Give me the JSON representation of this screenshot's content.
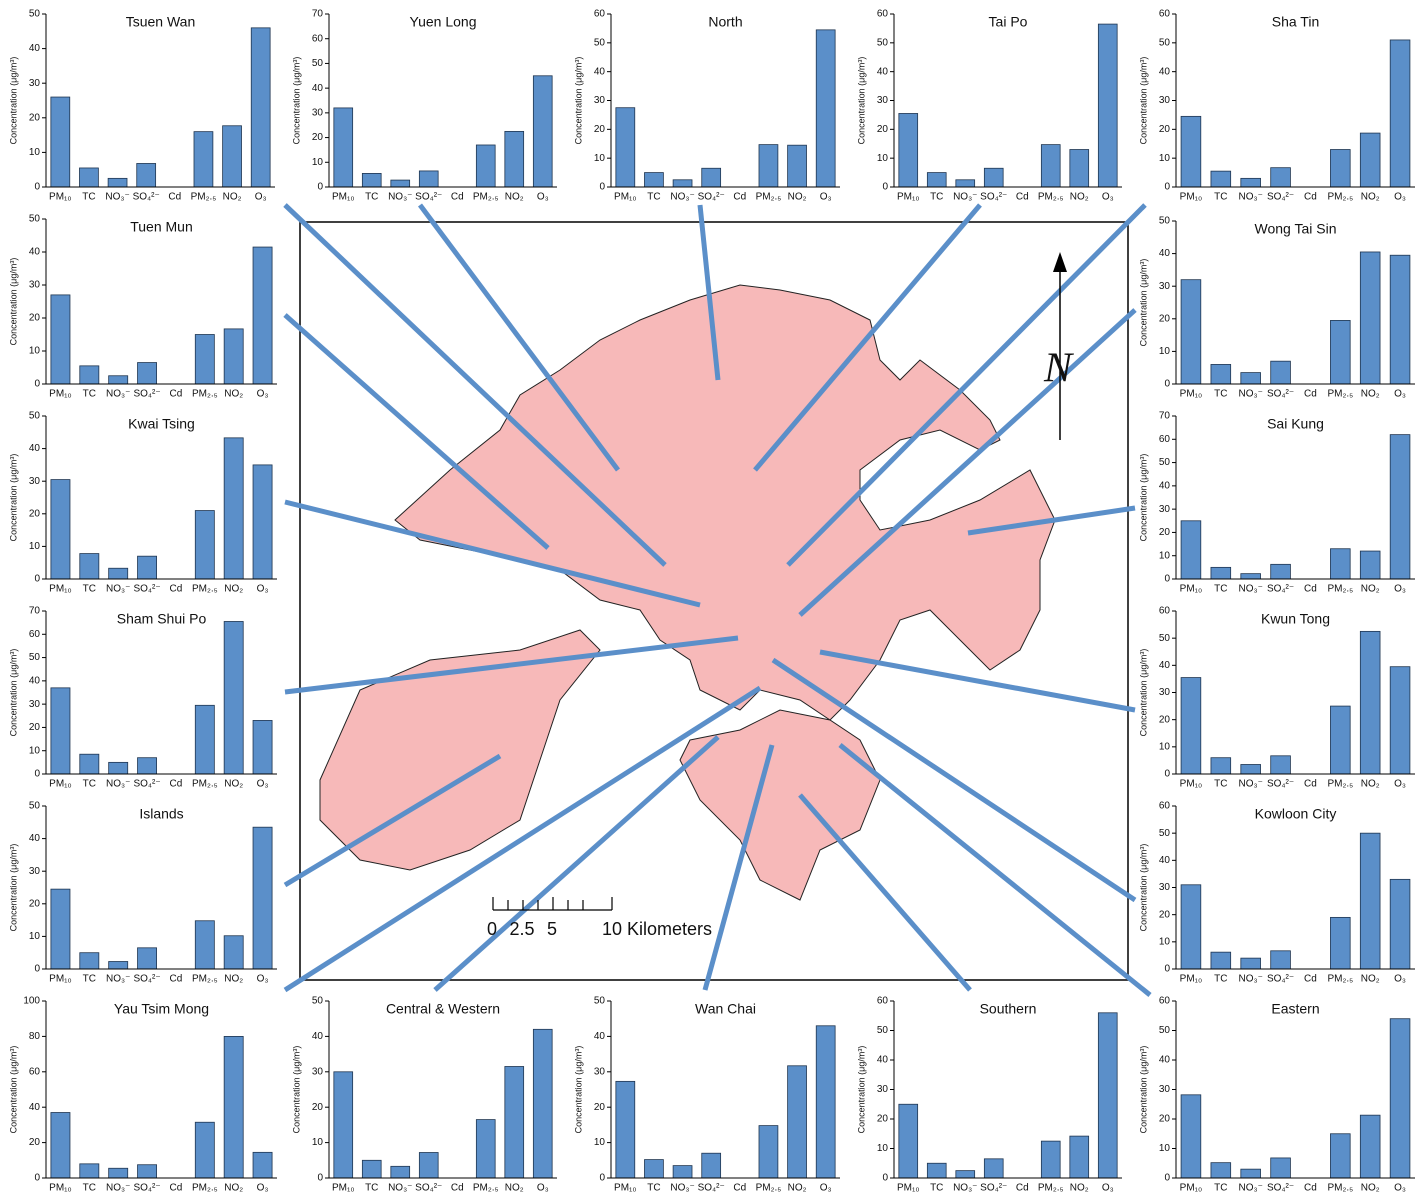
{
  "chart_data": [
    {
      "type": "bar",
      "title": "Tsuen Wan",
      "ylabel": "Concentration (μg/m³)",
      "categories": [
        "PM₁₀",
        "TC",
        "NO₃⁻",
        "SO₄²⁻",
        "Cd",
        "PM₂.₅",
        "NO₂",
        "O₃"
      ],
      "values": [
        26,
        5.5,
        2.5,
        6.8,
        0,
        16,
        17.7,
        46
      ],
      "color": "#5b8fc9",
      "ylim": [
        0,
        50
      ],
      "yticks": [
        0,
        10,
        20,
        30,
        40,
        50
      ]
    },
    {
      "type": "bar",
      "title": "Yuen Long",
      "ylabel": "Concentration (μg/m³)",
      "categories": [
        "PM₁₀",
        "TC",
        "NO₃⁻",
        "SO₄²⁻",
        "Cd",
        "PM₂.₅",
        "NO₂",
        "O₃"
      ],
      "values": [
        32,
        5.5,
        2.8,
        6.5,
        0,
        17,
        22.5,
        45
      ],
      "color": "#5b8fc9",
      "ylim": [
        0,
        70
      ],
      "yticks": [
        0,
        10,
        20,
        30,
        40,
        50,
        60,
        70
      ]
    },
    {
      "type": "bar",
      "title": "North",
      "ylabel": "Concentration (μg/m³)",
      "categories": [
        "PM₁₀",
        "TC",
        "NO₃⁻",
        "SO₄²⁻",
        "Cd",
        "PM₂.₅",
        "NO₂",
        "O₃"
      ],
      "values": [
        27.5,
        5,
        2.5,
        6.5,
        0,
        14.7,
        14.5,
        54.5
      ],
      "color": "#5b8fc9",
      "ylim": [
        0,
        60
      ],
      "yticks": [
        0,
        10,
        20,
        30,
        40,
        50,
        60
      ]
    },
    {
      "type": "bar",
      "title": "Tai Po",
      "ylabel": "Concentration (μg/m³)",
      "categories": [
        "PM₁₀",
        "TC",
        "NO₃⁻",
        "SO₄²⁻",
        "Cd",
        "PM₂.₅",
        "NO₂",
        "O₃"
      ],
      "values": [
        25.5,
        5,
        2.5,
        6.5,
        0,
        14.7,
        13,
        56.5
      ],
      "color": "#5b8fc9",
      "ylim": [
        0,
        60
      ],
      "yticks": [
        0,
        10,
        20,
        30,
        40,
        50,
        60
      ]
    },
    {
      "type": "bar",
      "title": "Sha Tin",
      "ylabel": "Concentration (μg/m³)",
      "categories": [
        "PM₁₀",
        "TC",
        "NO₃⁻",
        "SO₄²⁻",
        "Cd",
        "PM₂.₅",
        "NO₂",
        "O₃"
      ],
      "values": [
        24.5,
        5.5,
        3,
        6.7,
        0,
        13,
        18.7,
        51
      ],
      "color": "#5b8fc9",
      "ylim": [
        0,
        60
      ],
      "yticks": [
        0,
        10,
        20,
        30,
        40,
        50,
        60
      ]
    },
    {
      "type": "bar",
      "title": "Tuen Mun",
      "ylabel": "Concentration (μg/m³)",
      "categories": [
        "PM₁₀",
        "TC",
        "NO₃⁻",
        "SO₄²⁻",
        "Cd",
        "PM₂.₅",
        "NO₂",
        "O₃"
      ],
      "values": [
        27,
        5.5,
        2.5,
        6.5,
        0,
        15,
        16.7,
        41.5
      ],
      "color": "#5b8fc9",
      "ylim": [
        0,
        50
      ],
      "yticks": [
        0,
        10,
        20,
        30,
        40,
        50
      ]
    },
    {
      "type": "bar",
      "title": "Wong Tai Sin",
      "ylabel": "Concentration (μg/m³)",
      "categories": [
        "PM₁₀",
        "TC",
        "NO₃⁻",
        "SO₄²⁻",
        "Cd",
        "PM₂.₅",
        "NO₂",
        "O₃"
      ],
      "values": [
        32,
        6,
        3.5,
        7,
        0,
        19.5,
        40.5,
        39.5
      ],
      "color": "#5b8fc9",
      "ylim": [
        0,
        50
      ],
      "yticks": [
        0,
        10,
        20,
        30,
        40,
        50
      ]
    },
    {
      "type": "bar",
      "title": "Kwai Tsing",
      "ylabel": "Concentration (μg/m³)",
      "categories": [
        "PM₁₀",
        "TC",
        "NO₃⁻",
        "SO₄²⁻",
        "Cd",
        "PM₂.₅",
        "NO₂",
        "O₃"
      ],
      "values": [
        30.5,
        7.8,
        3.3,
        7,
        0,
        21,
        43.3,
        35
      ],
      "color": "#5b8fc9",
      "ylim": [
        0,
        50
      ],
      "yticks": [
        0,
        10,
        20,
        30,
        40,
        50
      ]
    },
    {
      "type": "bar",
      "title": "Sai Kung",
      "ylabel": "Concentration (μg/m³)",
      "categories": [
        "PM₁₀",
        "TC",
        "NO₃⁻",
        "SO₄²⁻",
        "Cd",
        "PM₂.₅",
        "NO₂",
        "O₃"
      ],
      "values": [
        25,
        5,
        2.3,
        6.3,
        0,
        13,
        12,
        62
      ],
      "color": "#5b8fc9",
      "ylim": [
        0,
        70
      ],
      "yticks": [
        0,
        10,
        20,
        30,
        40,
        50,
        60,
        70
      ]
    },
    {
      "type": "bar",
      "title": "Sham Shui Po",
      "ylabel": "Concentration (μg/m³)",
      "categories": [
        "PM₁₀",
        "TC",
        "NO₃⁻",
        "SO₄²⁻",
        "Cd",
        "PM₂.₅",
        "NO₂",
        "O₃"
      ],
      "values": [
        37,
        8.5,
        5,
        7,
        0,
        29.5,
        65.5,
        23
      ],
      "color": "#5b8fc9",
      "ylim": [
        0,
        70
      ],
      "yticks": [
        0,
        10,
        20,
        30,
        40,
        50,
        60,
        70
      ]
    },
    {
      "type": "bar",
      "title": "Kwun Tong",
      "ylabel": "Concentration (μg/m³)",
      "categories": [
        "PM₁₀",
        "TC",
        "NO₃⁻",
        "SO₄²⁻",
        "Cd",
        "PM₂.₅",
        "NO₂",
        "O₃"
      ],
      "values": [
        35.5,
        6,
        3.5,
        6.7,
        0,
        25,
        52.5,
        39.5
      ],
      "color": "#5b8fc9",
      "ylim": [
        0,
        60
      ],
      "yticks": [
        0,
        10,
        20,
        30,
        40,
        50,
        60
      ]
    },
    {
      "type": "bar",
      "title": "Islands",
      "ylabel": "Concentration (μg/m³)",
      "categories": [
        "PM₁₀",
        "TC",
        "NO₃⁻",
        "SO₄²⁻",
        "Cd",
        "PM₂.₅",
        "NO₂",
        "O₃"
      ],
      "values": [
        24.5,
        5,
        2.3,
        6.5,
        0,
        14.8,
        10.2,
        43.5
      ],
      "color": "#5b8fc9",
      "ylim": [
        0,
        50
      ],
      "yticks": [
        0,
        10,
        20,
        30,
        40,
        50
      ]
    },
    {
      "type": "bar",
      "title": "Kowloon City",
      "ylabel": "Concentration (μg/m³)",
      "categories": [
        "PM₁₀",
        "TC",
        "NO₃⁻",
        "SO₄²⁻",
        "Cd",
        "PM₂.₅",
        "NO₂",
        "O₃"
      ],
      "values": [
        31,
        6.2,
        4,
        6.7,
        0,
        19,
        50,
        33
      ],
      "color": "#5b8fc9",
      "ylim": [
        0,
        60
      ],
      "yticks": [
        0,
        10,
        20,
        30,
        40,
        50,
        60
      ]
    },
    {
      "type": "bar",
      "title": "Yau Tsim Mong",
      "ylabel": "Concentration (μg/m³)",
      "categories": [
        "PM₁₀",
        "TC",
        "NO₃⁻",
        "SO₄²⁻",
        "Cd",
        "PM₂.₅",
        "NO₂",
        "O₃"
      ],
      "values": [
        37,
        8,
        5.5,
        7.5,
        0,
        31.5,
        80,
        14.5
      ],
      "color": "#5b8fc9",
      "ylim": [
        0,
        100
      ],
      "yticks": [
        0,
        20,
        40,
        60,
        80,
        100
      ]
    },
    {
      "type": "bar",
      "title": "Central & Western",
      "ylabel": "Concentration (μg/m³)",
      "categories": [
        "PM₁₀",
        "TC",
        "NO₃⁻",
        "SO₄²⁻",
        "Cd",
        "PM₂.₅",
        "NO₂",
        "O₃"
      ],
      "values": [
        30,
        5,
        3.3,
        7.2,
        0,
        16.5,
        31.5,
        42
      ],
      "color": "#5b8fc9",
      "ylim": [
        0,
        50
      ],
      "yticks": [
        0,
        10,
        20,
        30,
        40,
        50
      ]
    },
    {
      "type": "bar",
      "title": "Wan Chai",
      "ylabel": "Concentration (μg/m³)",
      "categories": [
        "PM₁₀",
        "TC",
        "NO₃⁻",
        "SO₄²⁻",
        "Cd",
        "PM₂.₅",
        "NO₂",
        "O₃"
      ],
      "values": [
        27.3,
        5.2,
        3.5,
        7,
        0,
        14.8,
        31.7,
        43
      ],
      "color": "#5b8fc9",
      "ylim": [
        0,
        50
      ],
      "yticks": [
        0,
        10,
        20,
        30,
        40,
        50
      ]
    },
    {
      "type": "bar",
      "title": "Southern",
      "ylabel": "Concentration (μg/m³)",
      "categories": [
        "PM₁₀",
        "TC",
        "NO₃⁻",
        "SO₄²⁻",
        "Cd",
        "PM₂.₅",
        "NO₂",
        "O₃"
      ],
      "values": [
        25,
        5,
        2.5,
        6.5,
        0,
        12.5,
        14.2,
        56
      ],
      "color": "#5b8fc9",
      "ylim": [
        0,
        60
      ],
      "yticks": [
        0,
        10,
        20,
        30,
        40,
        50,
        60
      ]
    },
    {
      "type": "bar",
      "title": "Eastern",
      "ylabel": "Concentration (μg/m³)",
      "categories": [
        "PM₁₀",
        "TC",
        "NO₃⁻",
        "SO₄²⁻",
        "Cd",
        "PM₂.₅",
        "NO₂",
        "O₃"
      ],
      "values": [
        28.2,
        5.2,
        3,
        6.8,
        0,
        15,
        21.3,
        54
      ],
      "color": "#5b8fc9",
      "ylim": [
        0,
        60
      ],
      "yticks": [
        0,
        10,
        20,
        30,
        40,
        50,
        60
      ]
    }
  ],
  "map": {
    "scale_labels": [
      "0",
      "2.5",
      "5",
      "10 Kilometers"
    ],
    "north": "N"
  }
}
